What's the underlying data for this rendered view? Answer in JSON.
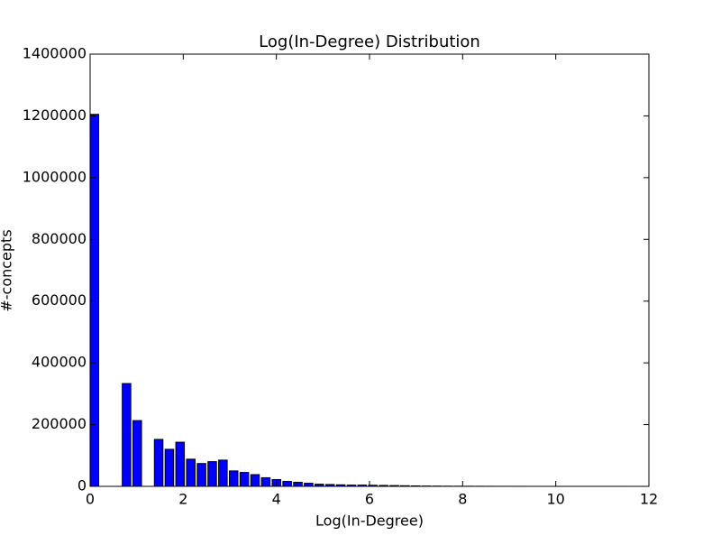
{
  "chart_data": {
    "type": "histogram",
    "title": "Log(In-Degree) Distribution",
    "x_label": "Log(In-Degree)",
    "y_label": "#-concepts",
    "bins": [
      0,
      0.23,
      0.46,
      0.69,
      0.92,
      1.15,
      1.38,
      1.61,
      1.84,
      2.07,
      2.3,
      2.53,
      2.76,
      2.99,
      3.22,
      3.45,
      3.68,
      3.91,
      4.14,
      4.37,
      4.6,
      4.83,
      5.06,
      5.29,
      5.52,
      5.75,
      5.98,
      6.21,
      6.44,
      6.67,
      6.9,
      7.13,
      7.36,
      7.59,
      7.82,
      8.05,
      8.28,
      8.51,
      8.74,
      8.97,
      9.2,
      9.43,
      9.66,
      9.89,
      10.12,
      10.35,
      10.58,
      10.81,
      11.04,
      11.27,
      11.5
    ],
    "counts": [
      1205000,
      0,
      0,
      333000,
      213000,
      0,
      152000,
      120000,
      143000,
      88000,
      74000,
      80000,
      85000,
      50000,
      45000,
      38000,
      28000,
      22000,
      16000,
      13000,
      10000,
      7000,
      6000,
      5000,
      4000,
      4000,
      3500,
      3000,
      2500,
      2000,
      1500,
      1000,
      800,
      600,
      500,
      400,
      300,
      200,
      150,
      100,
      80,
      60,
      40,
      30,
      20,
      10,
      5,
      3,
      2,
      1
    ],
    "color": "#0000ff",
    "xlim": [
      0,
      12
    ],
    "xticks": [
      0,
      2,
      4,
      6,
      8,
      10,
      12
    ],
    "ylim": [
      0,
      1400000
    ],
    "yticks": [
      0,
      200000,
      400000,
      600000,
      800000,
      1000000,
      1200000,
      1400000
    ],
    "grid": false
  }
}
